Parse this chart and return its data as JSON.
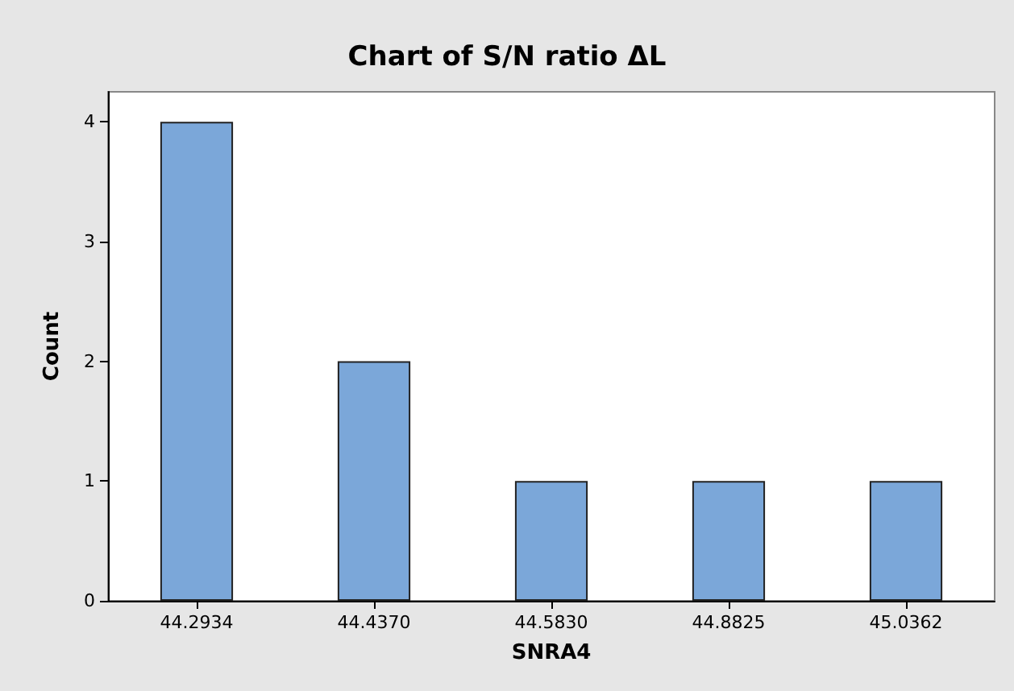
{
  "chart_data": {
    "type": "bar",
    "title": "Chart of S/N ratio ΔL",
    "xlabel": "SNRA4",
    "ylabel": "Count",
    "categories": [
      "44.2934",
      "44.4370",
      "44.5830",
      "44.8825",
      "45.0362"
    ],
    "values": [
      4,
      2,
      1,
      1,
      1
    ],
    "color": "#7ba7d9",
    "ylim": [
      0,
      4.25
    ],
    "yticks": [
      0,
      1,
      2,
      3,
      4
    ],
    "grid": false
  }
}
